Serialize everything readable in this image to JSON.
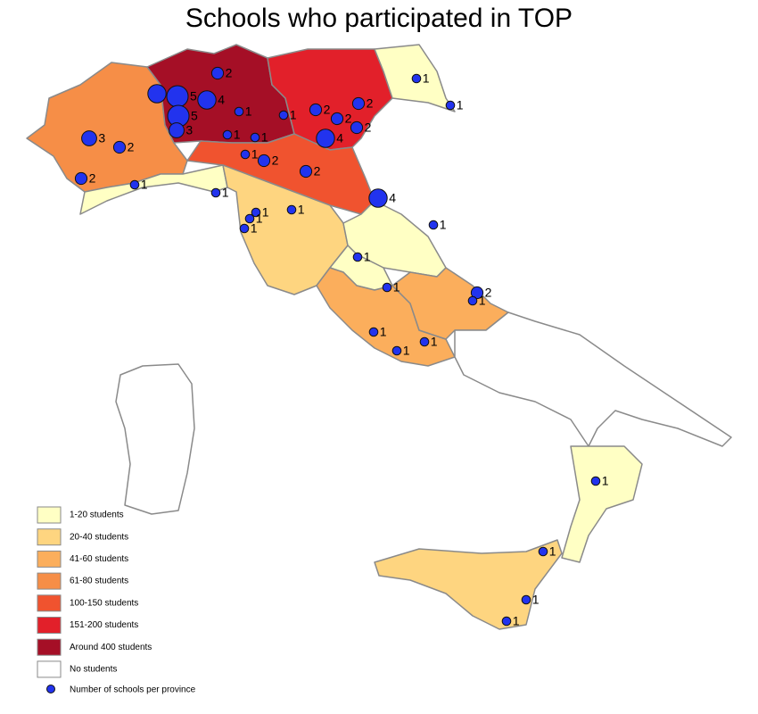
{
  "title": "Schools who participated in TOP",
  "legend": [
    {
      "label": "1-20 students",
      "color": "#ffffc4"
    },
    {
      "label": "20-40 students",
      "color": "#fed580"
    },
    {
      "label": "41-60 students",
      "color": "#fbae5c"
    },
    {
      "label": "61-80 students",
      "color": "#f68e47"
    },
    {
      "label": "100-150 students",
      "color": "#f0532f"
    },
    {
      "label": "151-200 students",
      "color": "#e2202a"
    },
    {
      "label": "Around 400 students",
      "color": "#a50f26"
    },
    {
      "label": "No students",
      "color": "#ffffff"
    }
  ],
  "marker_legend": {
    "label": "Number of schools per province",
    "color": "#2233ee"
  },
  "schools_per_province": [
    1,
    1,
    2,
    4,
    5,
    4,
    1,
    5,
    3,
    3,
    2,
    2,
    1,
    1,
    1,
    1,
    2,
    2,
    1,
    1,
    1,
    1,
    1,
    1,
    2,
    2,
    2,
    2,
    4,
    4,
    1,
    1,
    1,
    2,
    1,
    1,
    1,
    1,
    1,
    1,
    1,
    1
  ]
}
